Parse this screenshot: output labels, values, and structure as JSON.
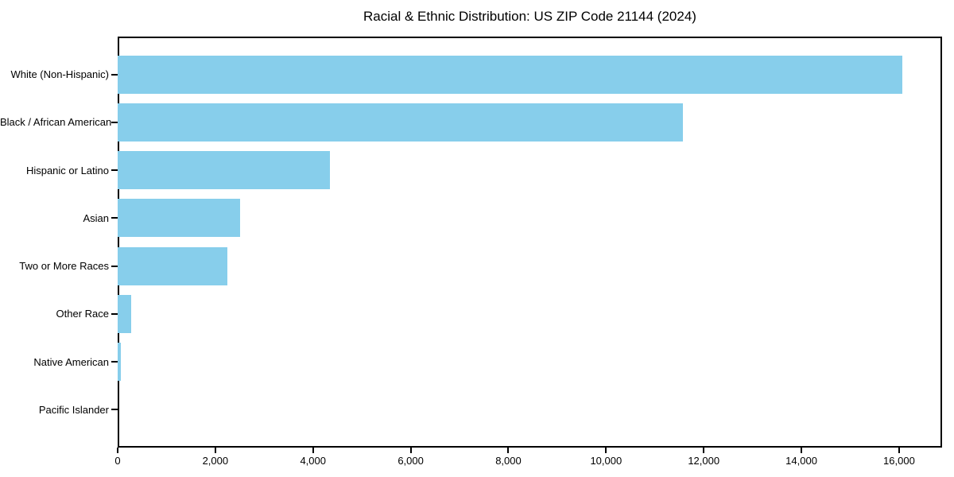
{
  "chart_data": {
    "type": "bar",
    "orientation": "horizontal",
    "title": "Racial & Ethnic Distribution: US ZIP Code 21144 (2024)",
    "xlabel": "",
    "ylabel": "",
    "categories": [
      "White (Non-Hispanic)",
      "Black / African American",
      "Hispanic or Latino",
      "Asian",
      "Two or More Races",
      "Other Race",
      "Native American",
      "Pacific Islander"
    ],
    "values": [
      16060,
      11580,
      4350,
      2510,
      2240,
      270,
      60,
      0
    ],
    "xlim": [
      0,
      16880
    ],
    "x_ticks": [
      0,
      2000,
      4000,
      6000,
      8000,
      10000,
      12000,
      14000,
      16000
    ],
    "x_tick_labels": [
      "0",
      "2,000",
      "4,000",
      "6,000",
      "8,000",
      "10,000",
      "12,000",
      "14,000",
      "16,000"
    ],
    "grid": false,
    "legend": null,
    "bar_color": "#87CEEB",
    "axis_color": "#000000",
    "background_color": "#ffffff"
  }
}
